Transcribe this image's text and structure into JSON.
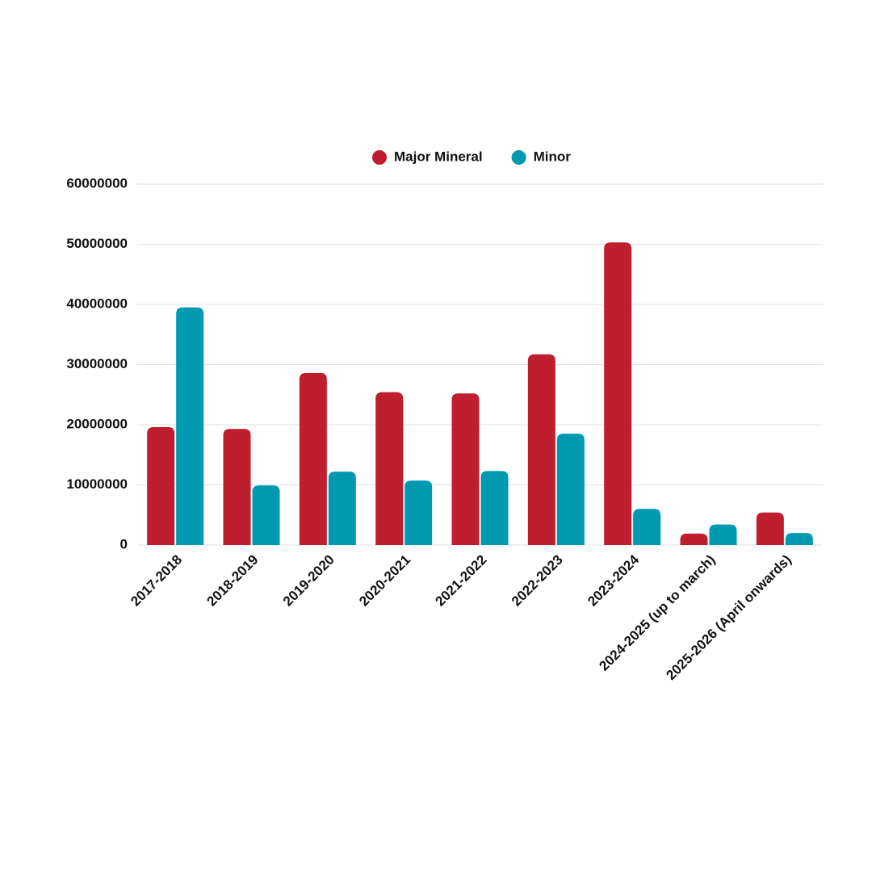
{
  "chart_data": {
    "type": "bar",
    "categories": [
      "2017-2018",
      "2018-2019",
      "2019-2020",
      "2020-2021",
      "2021-2022",
      "2022-2023",
      "2023-2024",
      "2024-2025 (up to march)",
      "2025-2026 (April onwards)"
    ],
    "series": [
      {
        "name": "Major Mineral",
        "color": "#be1e2d",
        "values": [
          19600000,
          19300000,
          28600000,
          25400000,
          25200000,
          31700000,
          50300000,
          1900000,
          5400000
        ]
      },
      {
        "name": "Minor",
        "color": "#0099b0",
        "values": [
          39500000,
          9900000,
          12200000,
          10700000,
          12300000,
          18500000,
          6000000,
          3400000,
          2000000
        ]
      }
    ],
    "ylim": [
      0,
      60000000
    ],
    "yticks": [
      0,
      10000000,
      20000000,
      30000000,
      40000000,
      50000000,
      60000000
    ],
    "grid": true,
    "legend": "top"
  }
}
